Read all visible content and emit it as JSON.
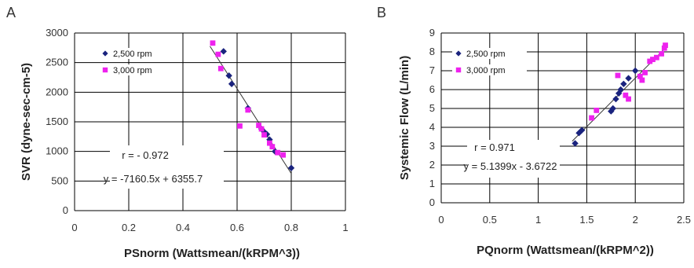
{
  "chart_data": [
    {
      "type": "scatter",
      "panel": "A",
      "xlabel": "PSnorm (Wattsmean/(kRPM^3))",
      "ylabel": "SVR (dyne-sec-cm-5)",
      "xlim": [
        0,
        1
      ],
      "ylim": [
        0,
        3000
      ],
      "x_ticks": [
        "0",
        "0.2",
        "0.4",
        "0.6",
        "0.8",
        "1"
      ],
      "y_ticks": [
        "0",
        "500",
        "1000",
        "1500",
        "2000",
        "2500",
        "3000"
      ],
      "grid": true,
      "legend": "top-left",
      "series": [
        {
          "name": "2,500 rpm",
          "color": "#1a237e",
          "marker": "diamond",
          "x": [
            0.55,
            0.57,
            0.58,
            0.64,
            0.69,
            0.7,
            0.71,
            0.72,
            0.74,
            0.8
          ],
          "y": [
            2690,
            2280,
            2140,
            1730,
            1380,
            1330,
            1290,
            1200,
            1000,
            720
          ]
        },
        {
          "name": "3,000 rpm",
          "color": "#ee22ee",
          "marker": "square",
          "x": [
            0.51,
            0.53,
            0.54,
            0.61,
            0.64,
            0.68,
            0.69,
            0.7,
            0.72,
            0.73,
            0.75,
            0.77
          ],
          "y": [
            2830,
            2640,
            2400,
            1430,
            1700,
            1440,
            1380,
            1280,
            1140,
            1080,
            980,
            940
          ]
        }
      ],
      "annotations": [
        "r = - 0.972",
        "y = -7160.5x + 6355.7"
      ],
      "fit": {
        "slope": -7160.5,
        "intercept": 6355.7,
        "x_range": [
          0.5,
          0.8
        ]
      }
    },
    {
      "type": "scatter",
      "panel": "B",
      "xlabel": "PQnorm (Wattsmean/(kRPM^2))",
      "ylabel": "Systemic Flow (L/min)",
      "xlim": [
        0,
        2.5
      ],
      "ylim": [
        0,
        9
      ],
      "x_ticks": [
        "0",
        "0.5",
        "1",
        "1.5",
        "2",
        "2.5"
      ],
      "y_ticks": [
        "0",
        "1",
        "2",
        "3",
        "4",
        "5",
        "6",
        "7",
        "8",
        "9"
      ],
      "grid": true,
      "legend": "top-left",
      "series": [
        {
          "name": "2,500 rpm",
          "color": "#1a237e",
          "marker": "diamond",
          "x": [
            1.38,
            1.42,
            1.45,
            1.75,
            1.77,
            1.8,
            1.83,
            1.85,
            1.88,
            1.93,
            2.0
          ],
          "y": [
            3.15,
            3.7,
            3.85,
            4.85,
            5.0,
            5.5,
            5.8,
            6.0,
            6.3,
            6.6,
            7.0
          ]
        },
        {
          "name": "3,000 rpm",
          "color": "#ee22ee",
          "marker": "square",
          "x": [
            1.55,
            1.6,
            1.82,
            1.9,
            1.93,
            2.05,
            2.07,
            2.1,
            2.15,
            2.18,
            2.22,
            2.27,
            2.3,
            2.31
          ],
          "y": [
            4.5,
            4.9,
            6.75,
            5.7,
            5.5,
            6.7,
            6.5,
            6.9,
            7.5,
            7.6,
            7.7,
            7.9,
            8.2,
            8.35
          ]
        }
      ],
      "annotations": [
        "r = 0.971",
        "y = 5.1399x - 3.6722"
      ],
      "fit": {
        "slope": 5.1399,
        "intercept": -3.6722,
        "x_range": [
          1.35,
          2.32
        ]
      }
    }
  ]
}
